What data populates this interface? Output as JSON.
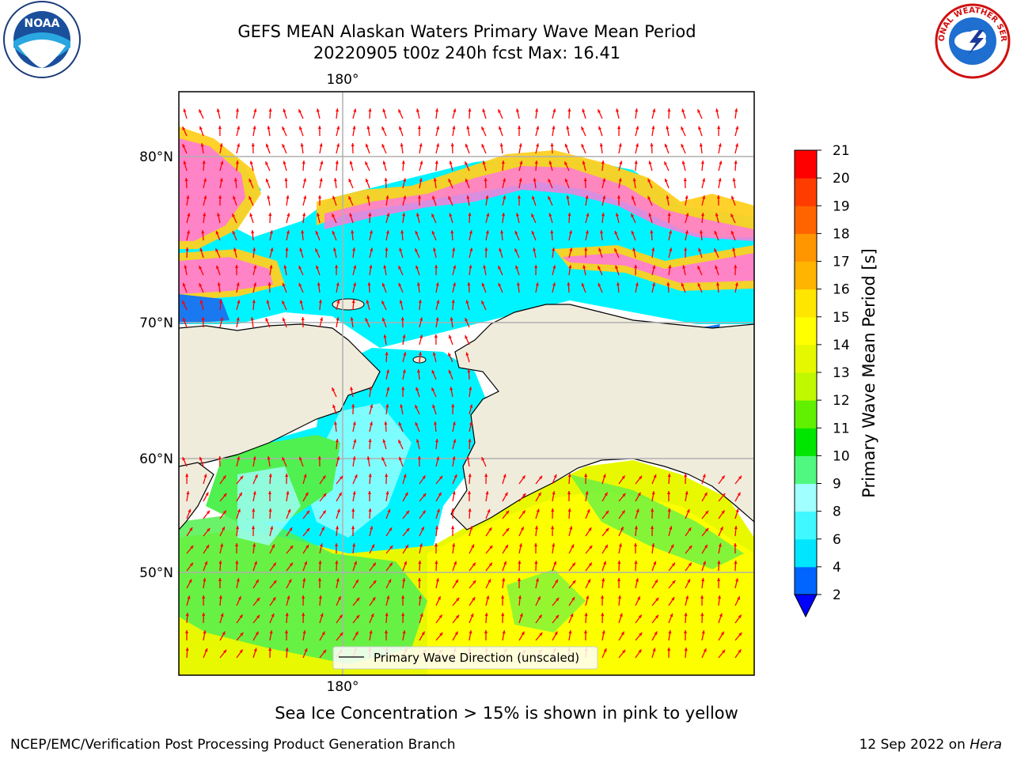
{
  "header": {
    "title_line1": "GEFS MEAN Alaskan Waters Primary Wave Mean Period",
    "title_line2": "20220905 t00z 240h fcst   Max: 16.41"
  },
  "logos": {
    "left": "NOAA",
    "right": "NATIONAL WEATHER SERVICE"
  },
  "map": {
    "lon_label_top": "180°",
    "lon_label_bottom": "180°",
    "lat_labels": [
      "80°N",
      "70°N",
      "60°N",
      "50°N"
    ],
    "legend_label": "Primary Wave Direction (unscaled)",
    "arrow_color": "#ff0000",
    "land_color": "#efecdc"
  },
  "colorbar": {
    "label": "Primary Wave Mean Period [s]",
    "ticks": [
      "2",
      "4",
      "6",
      "8",
      "9",
      "10",
      "11",
      "12",
      "13",
      "14",
      "15",
      "16",
      "17",
      "18",
      "19",
      "20",
      "21"
    ],
    "colors": [
      "#0064ff",
      "#00e6ff",
      "#40f8ff",
      "#a0ffff",
      "#50f880",
      "#00e600",
      "#60f000",
      "#c0f800",
      "#e6f800",
      "#ffff00",
      "#ffe600",
      "#ffb400",
      "#ff9600",
      "#ff6400",
      "#ff3c00",
      "#ff0000"
    ],
    "extend_color": "#0000ff"
  },
  "caption": "Sea Ice Concentration > 15% is shown in pink to yellow",
  "footer": {
    "left": "NCEP/EMC/Verification Post Processing Product Generation Branch",
    "date": "12 Sep 2022 on ",
    "host": "Hera"
  }
}
